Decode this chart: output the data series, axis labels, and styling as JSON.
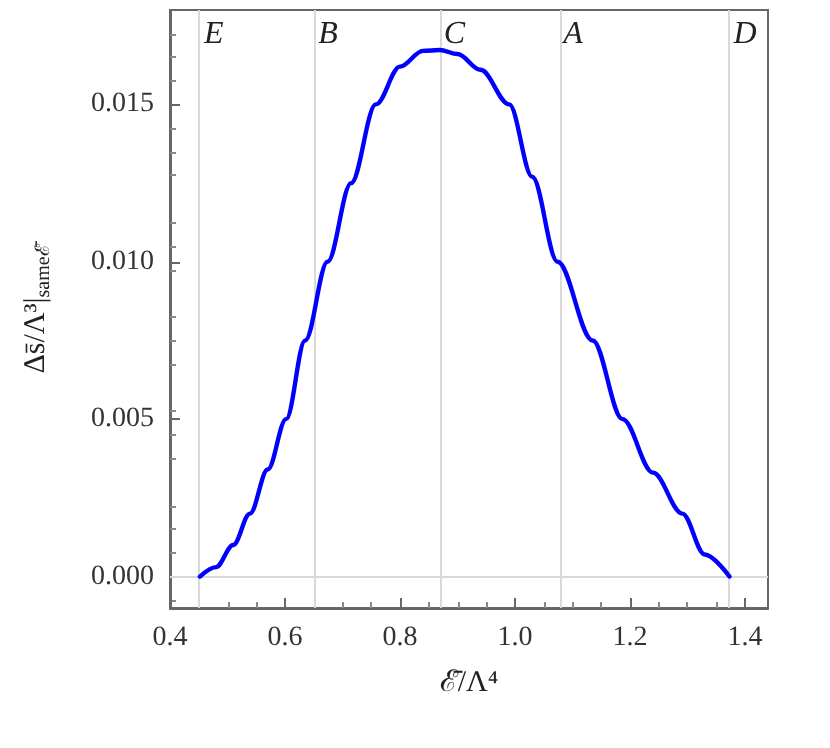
{
  "chart_data": {
    "type": "line",
    "xlabel": "ℰ̄/Λ⁴",
    "ylabel": "Δs̄/Λ³|$_{sameℰ̄}$",
    "x": [
      0.452,
      0.48,
      0.51,
      0.539,
      0.57,
      0.602,
      0.635,
      0.674,
      0.715,
      0.758,
      0.8,
      0.84,
      0.869,
      0.9,
      0.94,
      0.99,
      1.03,
      1.074,
      1.135,
      1.187,
      1.24,
      1.291,
      1.33,
      1.373
    ],
    "series": [
      {
        "color": "#0000ff",
        "values": [
          0,
          0.0003,
          0.001,
          0.002,
          0.0034,
          0.005,
          0.0075,
          0.01,
          0.0125,
          0.015,
          0.0162,
          0.0167,
          0.01673,
          0.0166,
          0.0161,
          0.015,
          0.0127,
          0.01,
          0.0075,
          0.005,
          0.0033,
          0.002,
          0.0007,
          0
        ]
      }
    ],
    "xlim": [
      0.4,
      1.44
    ],
    "xticks": [
      0.4,
      0.6,
      0.8,
      {
        "value": 1,
        "label": "1.0"
      },
      1.2,
      1.4
    ],
    "ylim": [
      -0.001,
      0.018
    ],
    "yticks": [
      {
        "value": 0,
        "label": "0.000"
      },
      0.005,
      {
        "value": 0.01,
        "label": "0.010"
      },
      0.015
    ],
    "ref_lines": [
      {
        "axis": "x",
        "value": 0.452,
        "label": "E",
        "color": "#d9d9d9"
      },
      {
        "axis": "x",
        "value": 0.651,
        "label": "B",
        "color": "#d9d9d9"
      },
      {
        "axis": "x",
        "value": 0.869,
        "label": "C",
        "color": "#d9d9d9"
      },
      {
        "axis": "x",
        "value": 1.077,
        "label": "A",
        "color": "#d9d9d9"
      },
      {
        "axis": "x",
        "value": 1.373,
        "label": "D",
        "color": "#d9d9d9"
      },
      {
        "axis": "y",
        "value": 0,
        "color": "#d9d9d9"
      }
    ],
    "grid": false,
    "marker": "none",
    "line_style": "solid"
  }
}
